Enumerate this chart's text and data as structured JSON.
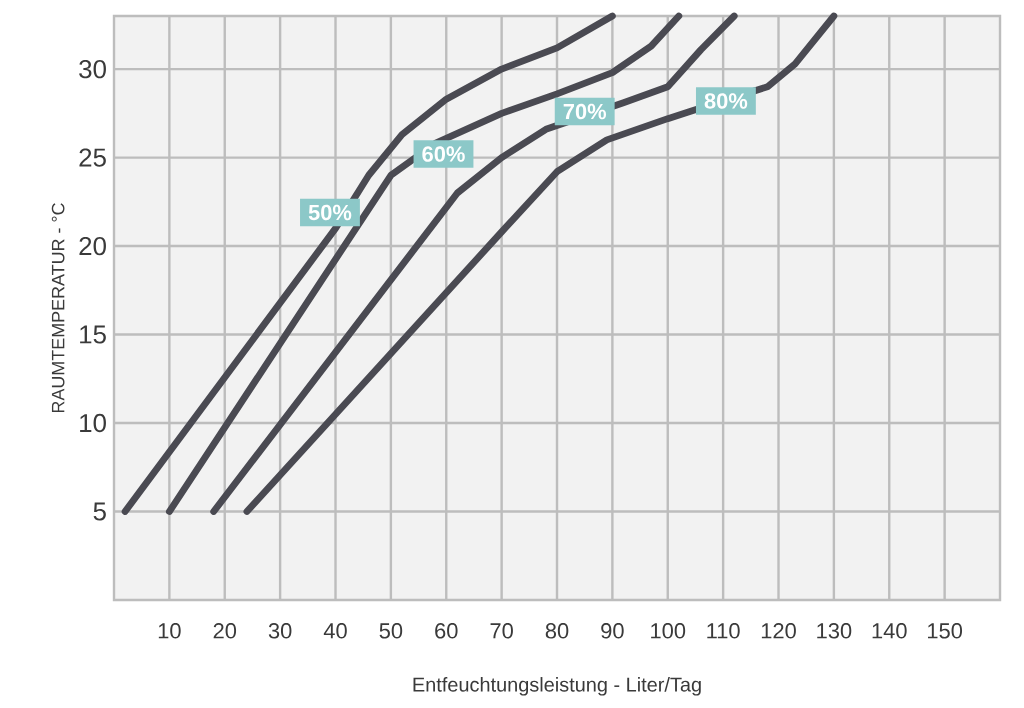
{
  "chart_data": {
    "type": "line",
    "xlabel": "Entfeuchtungsleistung - Liter/Tag",
    "ylabel": "RAUMTEMPERATUR - °C",
    "xlim": [
      0,
      160
    ],
    "ylim": [
      0,
      33
    ],
    "xticks": [
      10,
      20,
      30,
      40,
      50,
      60,
      70,
      80,
      90,
      100,
      110,
      120,
      130,
      140,
      150
    ],
    "yticks": [
      5,
      10,
      15,
      20,
      25,
      30
    ],
    "grid": true,
    "line_style": "solid",
    "marker": "none",
    "series": [
      {
        "color": "#4a4a52",
        "x": [
          2,
          40,
          46,
          52,
          60,
          70,
          80,
          90
        ],
        "values": [
          5,
          21,
          24,
          26.3,
          28.3,
          30,
          31.2,
          33
        ]
      },
      {
        "color": "#4a4a52",
        "x": [
          10,
          50,
          58,
          70,
          80,
          90,
          97,
          102
        ],
        "values": [
          5,
          24,
          25.8,
          27.5,
          28.6,
          29.8,
          31.3,
          33
        ]
      },
      {
        "color": "#4a4a52",
        "x": [
          18,
          62,
          70,
          78,
          92,
          100,
          106,
          112
        ],
        "values": [
          5,
          23,
          25,
          26.6,
          28.1,
          29,
          31.1,
          33
        ]
      },
      {
        "color": "#4a4a52",
        "x": [
          24,
          70,
          80,
          89,
          100,
          104,
          118,
          123,
          130
        ],
        "values": [
          5,
          20.8,
          24.2,
          26,
          27.2,
          27.6,
          29,
          30.3,
          33
        ]
      }
    ],
    "annotations": [
      {
        "text": "50%",
        "x": 39,
        "y": 21.9
      },
      {
        "text": "60%",
        "x": 59.5,
        "y": 25.2
      },
      {
        "text": "70%",
        "x": 85,
        "y": 27.6
      },
      {
        "text": "80%",
        "x": 110.5,
        "y": 28.2
      }
    ]
  }
}
